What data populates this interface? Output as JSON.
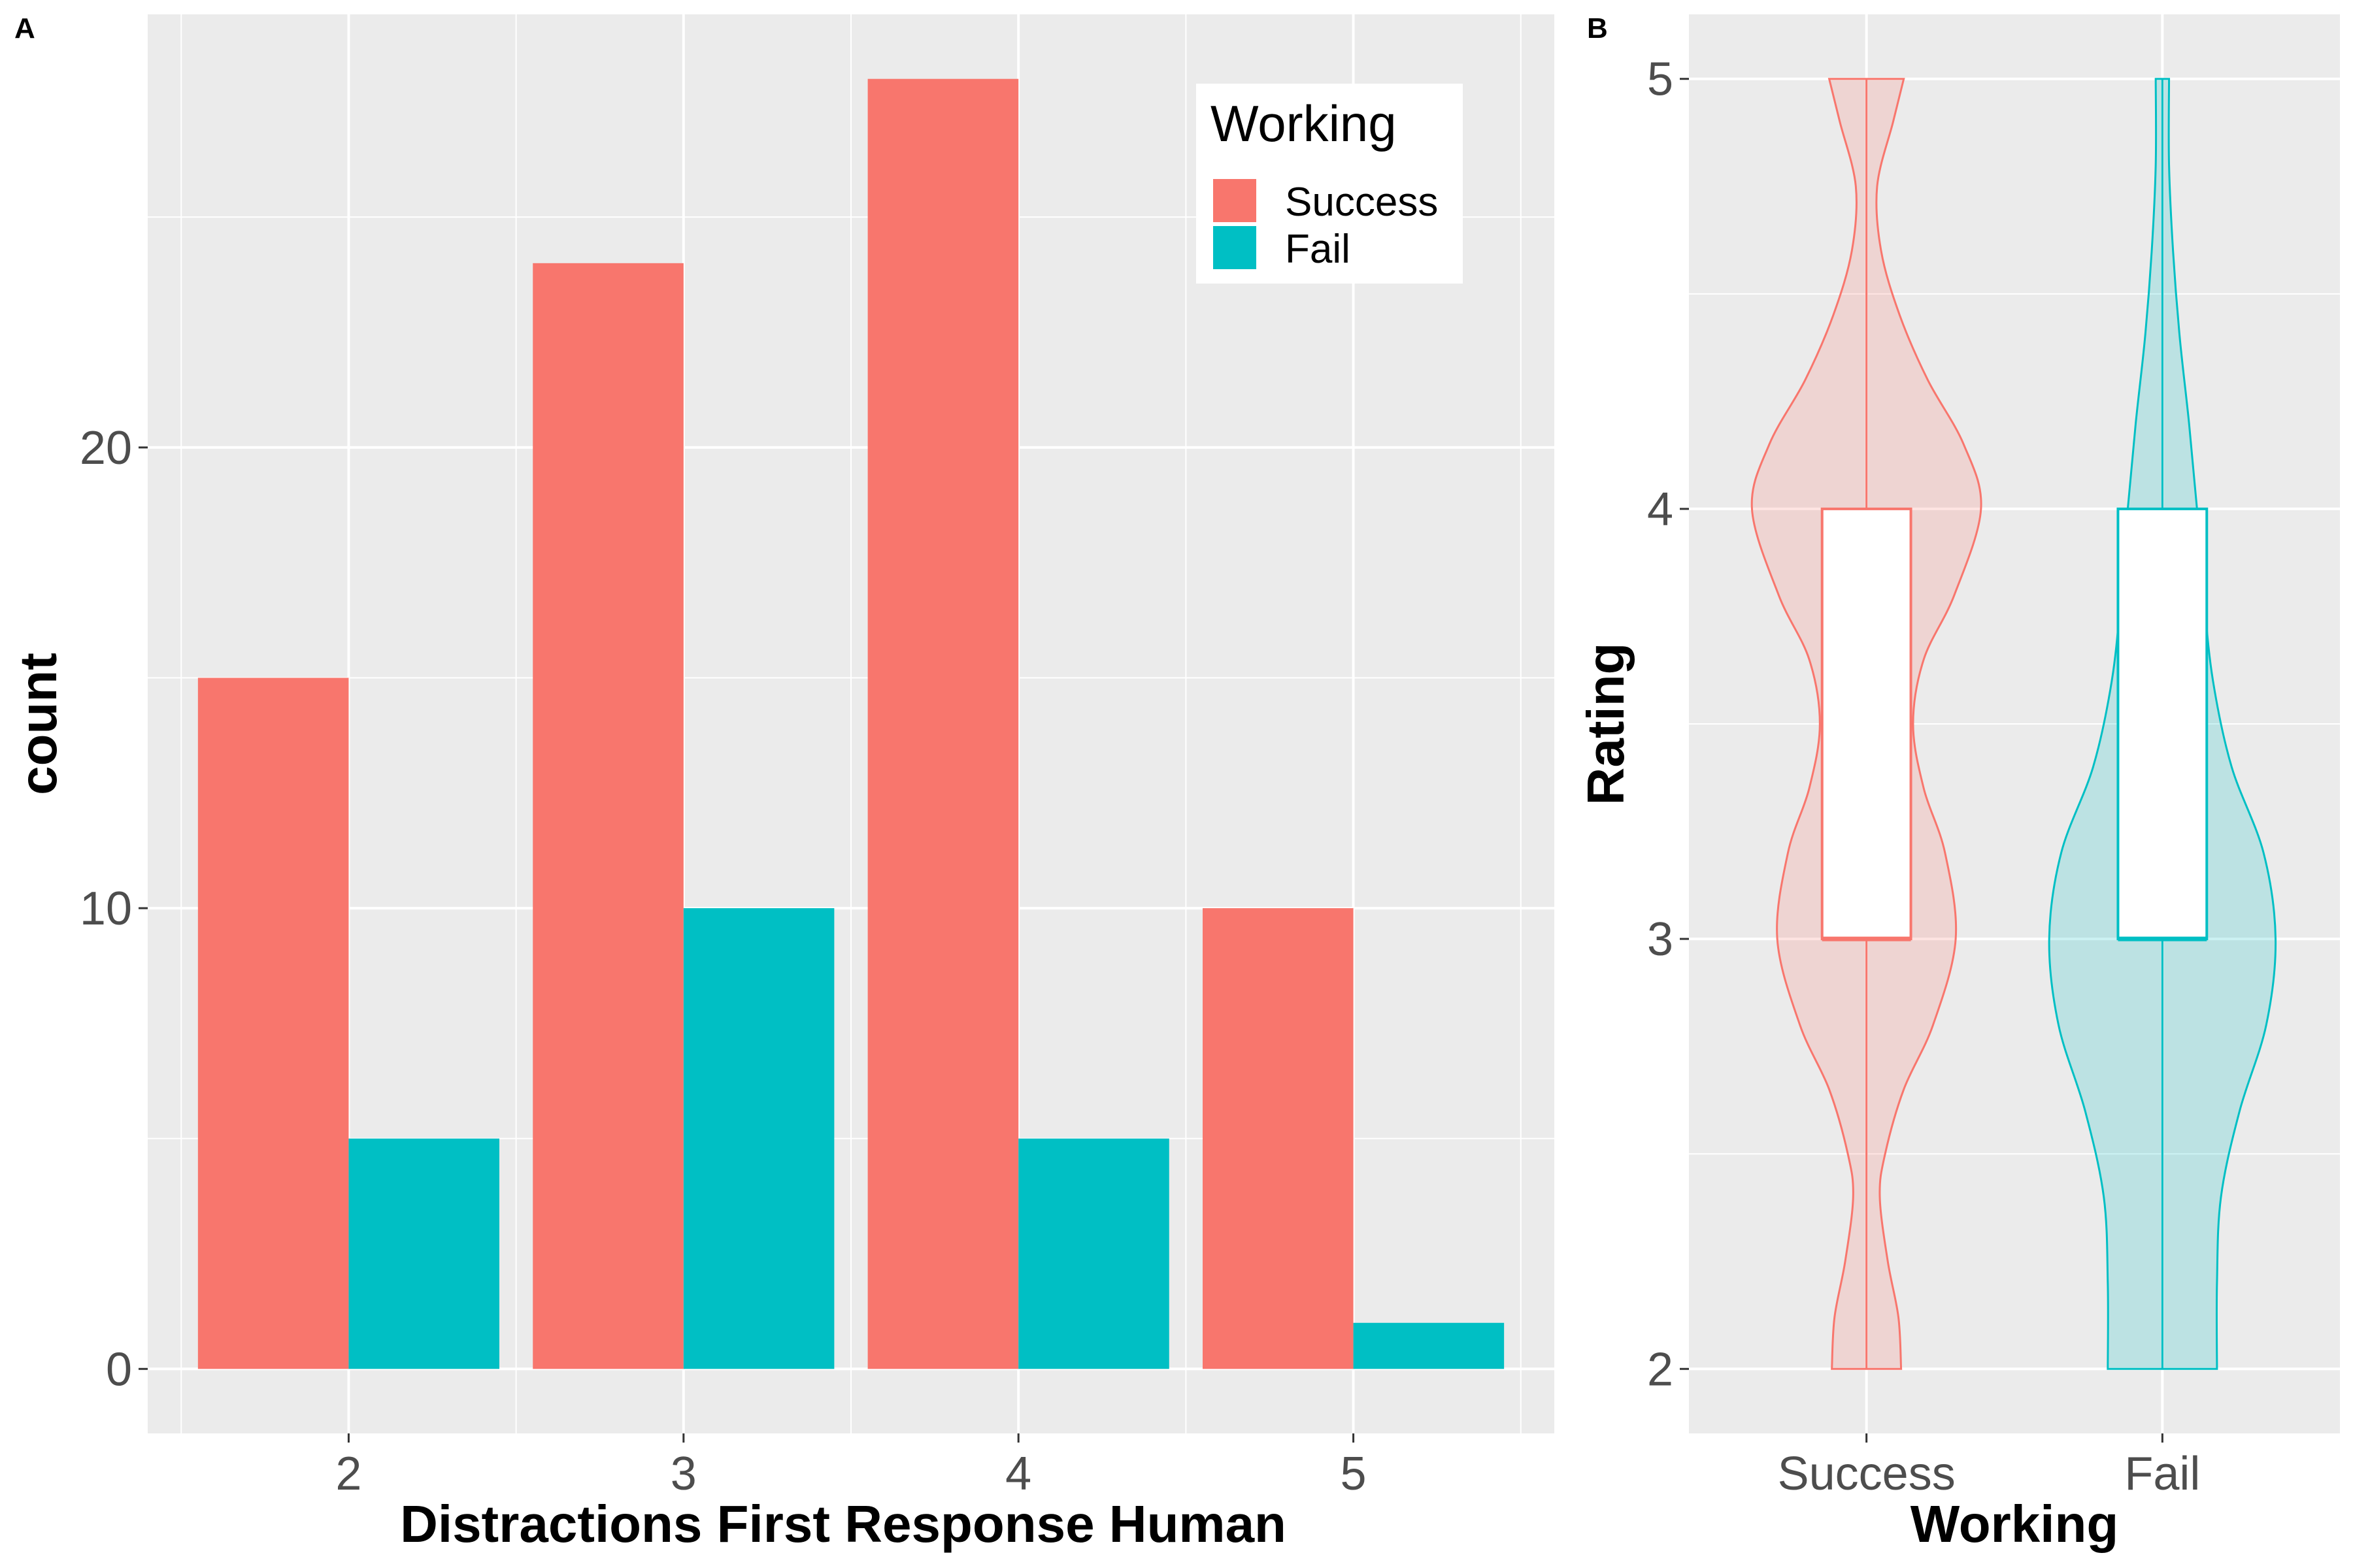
{
  "chart_data": [
    {
      "panel_tag": "A",
      "type": "bar",
      "xlabel": "Distractions First Response  Human",
      "ylabel": "count",
      "categories": [
        "2",
        "3",
        "4",
        "5"
      ],
      "series": [
        {
          "name": "Success",
          "color": "#F8766D",
          "values": [
            15,
            24,
            28,
            10
          ]
        },
        {
          "name": "Fail",
          "color": "#00BFC4",
          "values": [
            5,
            10,
            5,
            1
          ]
        }
      ],
      "ylim": [
        -1.4,
        29.4
      ],
      "yticks": [
        0,
        10,
        20
      ],
      "ytick_labels": [
        "0",
        "10",
        "20"
      ],
      "grid": true,
      "legend": {
        "title": "Working",
        "position": "top-right",
        "items": [
          "Success",
          "Fail"
        ]
      }
    },
    {
      "panel_tag": "B",
      "type": "violin",
      "xlabel": "Working",
      "ylabel": "Rating",
      "categories": [
        "Success",
        "Fail"
      ],
      "ylim": [
        1.85,
        5.15
      ],
      "yticks": [
        2,
        3,
        4,
        5
      ],
      "ytick_labels": [
        "2",
        "3",
        "4",
        "5"
      ],
      "grid": true,
      "series": [
        {
          "name": "Success",
          "color": "#F8766D",
          "fill": "#F8766D",
          "box": {
            "min": 2,
            "q1": 3,
            "median": 3,
            "q3": 4,
            "max": 5
          },
          "density_profile": [
            [
              2.0,
              0.26
            ],
            [
              2.12,
              0.24
            ],
            [
              2.25,
              0.16
            ],
            [
              2.4,
              0.1
            ],
            [
              2.5,
              0.14
            ],
            [
              2.65,
              0.28
            ],
            [
              2.8,
              0.5
            ],
            [
              3.0,
              0.67
            ],
            [
              3.2,
              0.59
            ],
            [
              3.35,
              0.43
            ],
            [
              3.5,
              0.35
            ],
            [
              3.65,
              0.43
            ],
            [
              3.8,
              0.66
            ],
            [
              4.0,
              0.86
            ],
            [
              4.15,
              0.73
            ],
            [
              4.3,
              0.46
            ],
            [
              4.45,
              0.25
            ],
            [
              4.6,
              0.11
            ],
            [
              4.75,
              0.08
            ],
            [
              4.9,
              0.2
            ],
            [
              5.0,
              0.28
            ]
          ]
        },
        {
          "name": "Fail",
          "color": "#00BFC4",
          "fill": "#00BFC4",
          "box": {
            "min": 2,
            "q1": 3,
            "median": 3,
            "q3": 4,
            "max": 5
          },
          "density_profile": [
            [
              2.0,
              0.41
            ],
            [
              2.2,
              0.41
            ],
            [
              2.4,
              0.44
            ],
            [
              2.6,
              0.58
            ],
            [
              2.8,
              0.78
            ],
            [
              3.0,
              0.85
            ],
            [
              3.2,
              0.76
            ],
            [
              3.4,
              0.52
            ],
            [
              3.6,
              0.38
            ],
            [
              3.8,
              0.31
            ],
            [
              4.0,
              0.26
            ],
            [
              4.2,
              0.2
            ],
            [
              4.4,
              0.13
            ],
            [
              4.6,
              0.08
            ],
            [
              4.8,
              0.05
            ],
            [
              5.0,
              0.05
            ]
          ]
        }
      ]
    }
  ]
}
